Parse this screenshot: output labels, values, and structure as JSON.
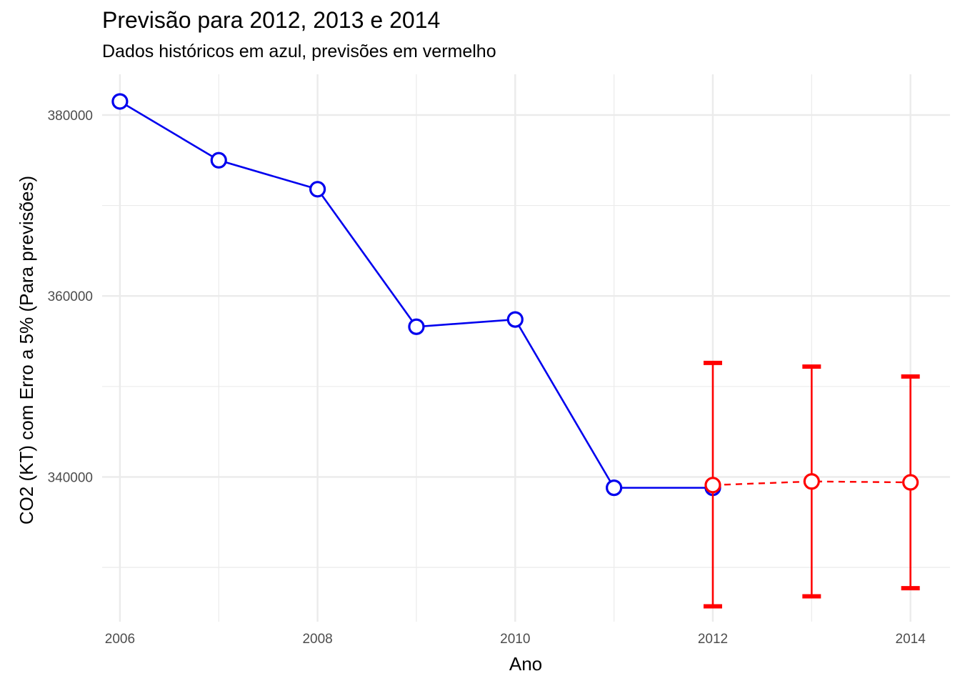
{
  "chart_data": {
    "type": "line",
    "title": "Previsão para 2012, 2013 e 2014",
    "subtitle": "Dados históricos em azul, previsões em vermelho",
    "xlabel": "Ano",
    "ylabel": "CO2 (KT) com Erro a 5% (Para previsões)",
    "xlim": [
      2005.82,
      2014.4
    ],
    "ylim": [
      324000,
      384500
    ],
    "x_ticks": [
      2006,
      2008,
      2010,
      2012,
      2014
    ],
    "y_ticks": [
      340000,
      360000,
      380000
    ],
    "grid": true,
    "series": [
      {
        "role": "historical",
        "color": "#0000ee",
        "line_style": "solid",
        "x": [
          2006,
          2007,
          2008,
          2009,
          2010,
          2011,
          2012
        ],
        "y": [
          381500,
          375000,
          371800,
          356600,
          357400,
          338800,
          338800
        ]
      },
      {
        "role": "forecast",
        "color": "#ff0000",
        "line_style": "dashed",
        "x": [
          2012,
          2013,
          2014
        ],
        "y": [
          339100,
          339500,
          339400
        ],
        "lower": [
          325700,
          326800,
          327700
        ],
        "upper": [
          352600,
          352200,
          351100
        ]
      }
    ]
  }
}
